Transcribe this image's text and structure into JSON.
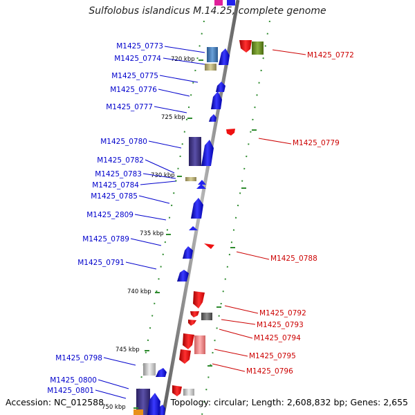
{
  "title": "Sulfolobus islandicus M.14.25, complete genome",
  "accession": "Accession: NC_012588",
  "topology": "Topology: circular; Length: 2,608,832 bp; Genes: 2,655",
  "colors": {
    "minus_strand_label": "#0000cc",
    "plus_strand_label": "#cc0000",
    "backbone": "#8a8a8a",
    "tick": "#228b22"
  },
  "kbp_ticks": [
    "720 kbp",
    "725 kbp",
    "730 kbp",
    "735 kbp",
    "740 kbp",
    "745 kbp",
    "750 kbp"
  ],
  "genes_left": [
    "M1425_0773",
    "M1425_0774",
    "M1425_0775",
    "M1425_0776",
    "M1425_0777",
    "M1425_0780",
    "M1425_0782",
    "M1425_0783",
    "M1425_0784",
    "M1425_0785",
    "M1425_2809",
    "M1425_0789",
    "M1425_0791",
    "M1425_0798",
    "M1425_0800",
    "M1425_0801"
  ],
  "genes_right": [
    "M1425_0772",
    "M1425_0779",
    "M1425_0788",
    "M1425_0792",
    "M1425_0793",
    "M1425_0794",
    "M1425_0795",
    "M1425_0796"
  ]
}
